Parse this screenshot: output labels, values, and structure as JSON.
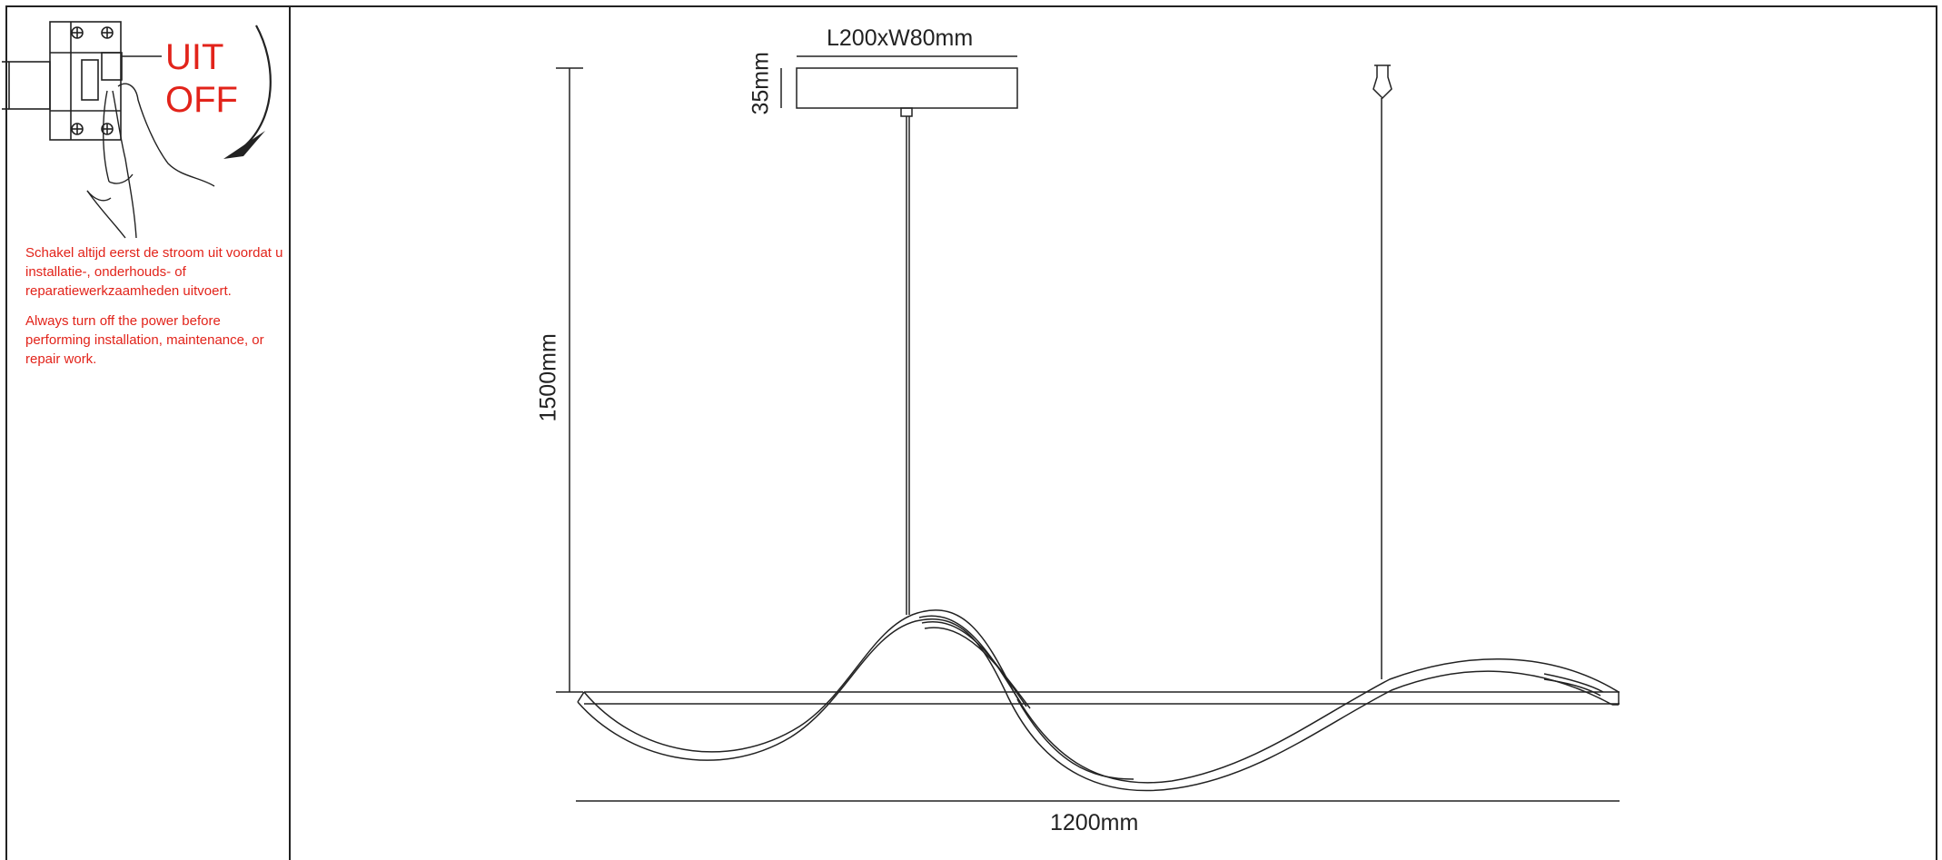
{
  "warning": {
    "uit": "UIT",
    "off": "OFF",
    "text_nl": "Schakel altijd eerst de stroom uit voordat u installatie-, onderhouds- of reparatiewerkzaamheden uitvoert.",
    "text_en": "Always turn off the power before performing installation, maintenance, or repair work."
  },
  "dimensions": {
    "canopy": "L200xW80mm",
    "canopy_height": "35mm",
    "drop": "1500mm",
    "length": "1200mm"
  },
  "icons": [
    "circuit-breaker-icon",
    "hand-icon",
    "rotation-arrow-icon"
  ],
  "colors": {
    "warning": "#e2231a",
    "line": "#222222"
  }
}
